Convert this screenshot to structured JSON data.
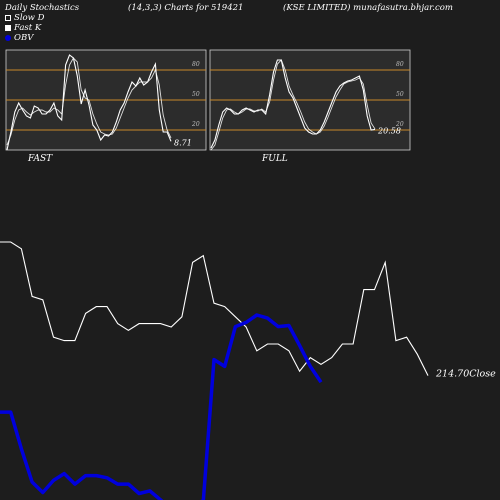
{
  "header": {
    "left": "Daily Stochastics",
    "center": "(14,3,3) Charts for 519421",
    "right": "(KSE LIMITED) munafasutra.bhjar.com"
  },
  "legend": {
    "slow_d": "Slow  D",
    "fast_k": "Fast K",
    "obv": "OBV"
  },
  "colors": {
    "background": "#1d1d1d",
    "panel": "#2c2c2c",
    "level_line": "#c8892a",
    "line": "#ffffff",
    "obv": "#0000dd"
  },
  "chart_data": [
    {
      "type": "line",
      "panel_label": "FAST",
      "ylim": [
        0,
        100
      ],
      "y_ticks": [
        "80",
        "50",
        "20"
      ],
      "levels": [
        80,
        50,
        20
      ],
      "last_value_label": "8.71",
      "series": [
        {
          "values": [
            0,
            18,
            38,
            47,
            40,
            34,
            32,
            44,
            42,
            36,
            36,
            40,
            47,
            34,
            30,
            85,
            95,
            92,
            74,
            46,
            60,
            45,
            25,
            20,
            10,
            15,
            14,
            18,
            28,
            40,
            47,
            58,
            68,
            64,
            72,
            65,
            68,
            78,
            86,
            40,
            18,
            18,
            8.71
          ]
        },
        {
          "values": [
            5,
            15,
            30,
            40,
            42,
            38,
            35,
            38,
            40,
            40,
            38,
            38,
            42,
            40,
            36,
            65,
            85,
            92,
            88,
            60,
            52,
            50,
            36,
            26,
            18,
            16,
            15,
            16,
            22,
            32,
            42,
            52,
            60,
            64,
            68,
            68,
            68,
            72,
            80,
            65,
            35,
            20,
            12
          ]
        }
      ]
    },
    {
      "type": "line",
      "panel_label": "FULL",
      "ylim": [
        0,
        100
      ],
      "y_ticks": [
        "80",
        "50",
        "20"
      ],
      "levels": [
        80,
        50,
        20
      ],
      "last_value_label": "20.58",
      "series": [
        {
          "values": [
            2,
            10,
            25,
            38,
            42,
            40,
            36,
            36,
            40,
            42,
            40,
            38,
            40,
            40,
            36,
            55,
            78,
            90,
            90,
            72,
            58,
            52,
            42,
            32,
            22,
            18,
            16,
            16,
            20,
            28,
            38,
            48,
            58,
            64,
            67,
            69,
            70,
            72,
            74,
            60,
            34,
            20,
            20.58
          ]
        },
        {
          "values": [
            0,
            5,
            18,
            32,
            40,
            41,
            38,
            36,
            38,
            41,
            41,
            39,
            39,
            41,
            38,
            48,
            70,
            86,
            90,
            80,
            64,
            55,
            47,
            38,
            28,
            21,
            18,
            16,
            18,
            24,
            33,
            43,
            53,
            60,
            66,
            68,
            69,
            70,
            72,
            66,
            45,
            27,
            21
          ]
        }
      ]
    },
    {
      "type": "line",
      "close_label": "214.70Close",
      "series": [
        {
          "name": "Close",
          "values": [
            254,
            254,
            252,
            238,
            237,
            226,
            225,
            225,
            233,
            235,
            235,
            230,
            228,
            230,
            230,
            230,
            229,
            232,
            248,
            250,
            236,
            235,
            232,
            229,
            222,
            224,
            224,
            222,
            216,
            220,
            218,
            220,
            224,
            224,
            240,
            240,
            248,
            225,
            226,
            221,
            214.7
          ]
        },
        {
          "name": "OBV",
          "values": [
            -205,
            -205,
            -275,
            -338,
            -358,
            -335,
            -322,
            -342,
            -326,
            -326,
            -330,
            -342,
            -342,
            -360,
            -355,
            -372,
            -390,
            -385,
            -380,
            -374,
            -105,
            -118,
            -42,
            -34,
            -20,
            -26,
            -42,
            -40,
            -78,
            -118,
            -148
          ]
        }
      ]
    }
  ]
}
